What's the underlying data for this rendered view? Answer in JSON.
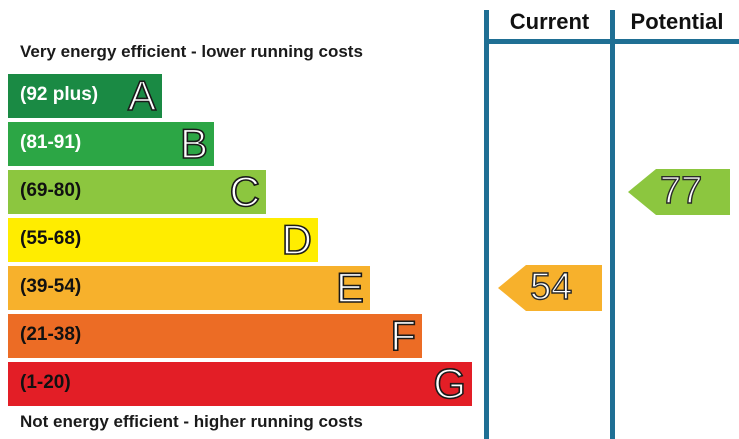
{
  "header": {
    "current_label": "Current",
    "potential_label": "Potential"
  },
  "captions": {
    "top": "Very energy efficient - lower running costs",
    "bottom": "Not energy efficient - higher running costs"
  },
  "chart_data": {
    "type": "bar",
    "title": "",
    "categories": [
      "A",
      "B",
      "C",
      "D",
      "E",
      "F",
      "G"
    ],
    "bands": [
      {
        "letter": "A",
        "range": "(92 plus)",
        "color": "#1a8a44",
        "text_light": true
      },
      {
        "letter": "B",
        "range": "(81-91)",
        "color": "#2ca645",
        "text_light": true
      },
      {
        "letter": "C",
        "range": "(69-80)",
        "color": "#8cc63f",
        "text_light": false
      },
      {
        "letter": "D",
        "range": "(55-68)",
        "color": "#ffed00",
        "text_light": false
      },
      {
        "letter": "E",
        "range": "(39-54)",
        "color": "#f7b12c",
        "text_light": false
      },
      {
        "letter": "F",
        "range": "(21-38)",
        "color": "#ec6c25",
        "text_light": false
      },
      {
        "letter": "G",
        "range": "(1-20)",
        "color": "#e31e26",
        "text_light": false
      }
    ],
    "ratings": {
      "current": {
        "value": 54,
        "band": "E",
        "color": "#f7b12c"
      },
      "potential": {
        "value": 77,
        "band": "C",
        "color": "#8cc63f"
      }
    }
  }
}
